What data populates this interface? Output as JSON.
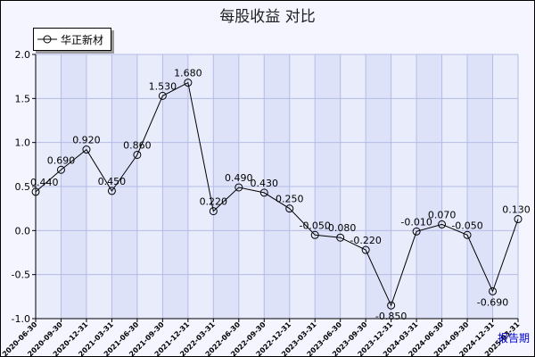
{
  "chart_data": {
    "type": "line",
    "title": "每股收益  对比",
    "xlabel": "报告期",
    "ylabel": "",
    "ylim": [
      -1.0,
      2.0
    ],
    "yticks": [
      -1.0,
      -0.5,
      0.0,
      0.5,
      1.0,
      1.5,
      2.0
    ],
    "ytick_labels": [
      "-1.0",
      "-0.5",
      "0.0",
      "0.5",
      "1.0",
      "1.5",
      "2.0"
    ],
    "grid": true,
    "legend_position": "top-left",
    "categories": [
      "2020-06-30",
      "2020-09-30",
      "2020-12-31",
      "2021-03-31",
      "2021-06-30",
      "2021-09-30",
      "2021-12-31",
      "2022-03-31",
      "2022-06-30",
      "2022-09-30",
      "2022-12-31",
      "2023-03-31",
      "2023-06-30",
      "2023-09-30",
      "2023-12-31",
      "2024-03-31",
      "2024-06-30",
      "2024-09-30",
      "2024-12-31",
      "2025-03-31"
    ],
    "series": [
      {
        "name": "华正新材",
        "color": "#000000",
        "values": [
          0.44,
          0.69,
          0.92,
          0.45,
          0.86,
          1.53,
          1.68,
          0.22,
          0.49,
          0.43,
          0.25,
          -0.05,
          -0.08,
          -0.22,
          -0.85,
          -0.01,
          0.07,
          -0.05,
          -0.69,
          0.13
        ],
        "labels": [
          "0.440",
          "0.690",
          "0.920",
          "0.450",
          "0.860",
          "1.530",
          "1.680",
          "0.220",
          "0.490",
          "0.430",
          "0.250",
          "-0.050",
          "-0.080",
          "-0.220",
          "-0.850",
          "-0.010",
          "0.070",
          "-0.050",
          "-0.690",
          "0.130"
        ]
      }
    ]
  },
  "colors": {
    "frame_bg": "#f4f5ff",
    "plot_bg": "#dde2f8",
    "plot_band": "#e9ecfb",
    "grid": "#b4bce6",
    "axis_label_color": "#0000cc"
  }
}
